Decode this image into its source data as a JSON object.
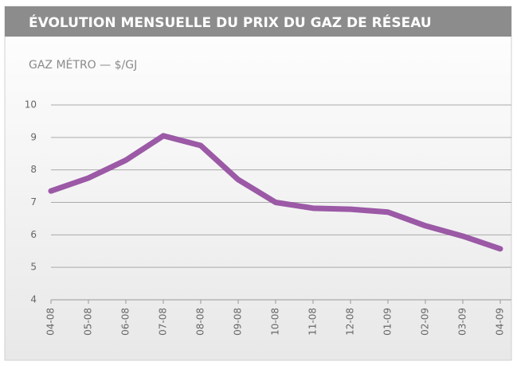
{
  "chart_data": {
    "type": "line",
    "title": "ÉVOLUTION MENSUELLE DU PRIX DU GAZ DE RÉSEAU",
    "subtitle": "GAZ MÉTRO — $/GJ",
    "categories": [
      "04-08",
      "05-08",
      "06-08",
      "07-08",
      "08-08",
      "09-08",
      "10-08",
      "11-08",
      "12-08",
      "01-09",
      "02-09",
      "03-09",
      "04-09"
    ],
    "series": [
      {
        "name": "Gaz Métro",
        "color": "#9b59a6",
        "values": [
          7.35,
          7.75,
          8.3,
          9.05,
          8.75,
          7.7,
          7.0,
          6.82,
          6.79,
          6.7,
          6.28,
          5.96,
          5.57
        ]
      }
    ],
    "ylim": [
      4,
      10
    ],
    "yticks": [
      4,
      5,
      6,
      7,
      8,
      9,
      10
    ],
    "grid": true
  }
}
